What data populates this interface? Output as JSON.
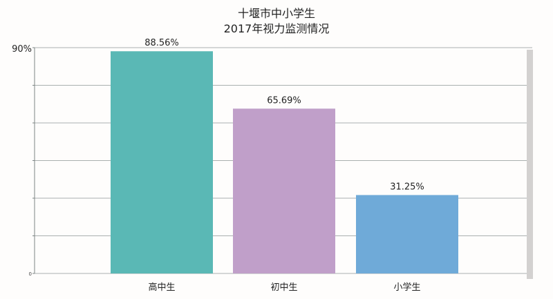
{
  "chart_data": {
    "type": "bar",
    "title": [
      "十堰市中小学生",
      "2017年视力监测情况"
    ],
    "categories": [
      "高中生",
      "初中生",
      "小学生"
    ],
    "values": [
      88.56,
      65.69,
      31.25
    ],
    "data_labels": [
      "88.56%",
      "65.69%",
      "31.25%"
    ],
    "colors": [
      "#5ab8b5",
      "#c09fc9",
      "#6faad8"
    ],
    "ylim": [
      0,
      90
    ],
    "ytick_labels": {
      "top": "90%",
      "bottom": "0"
    },
    "grid": true,
    "xlabel": "",
    "ylabel": ""
  }
}
